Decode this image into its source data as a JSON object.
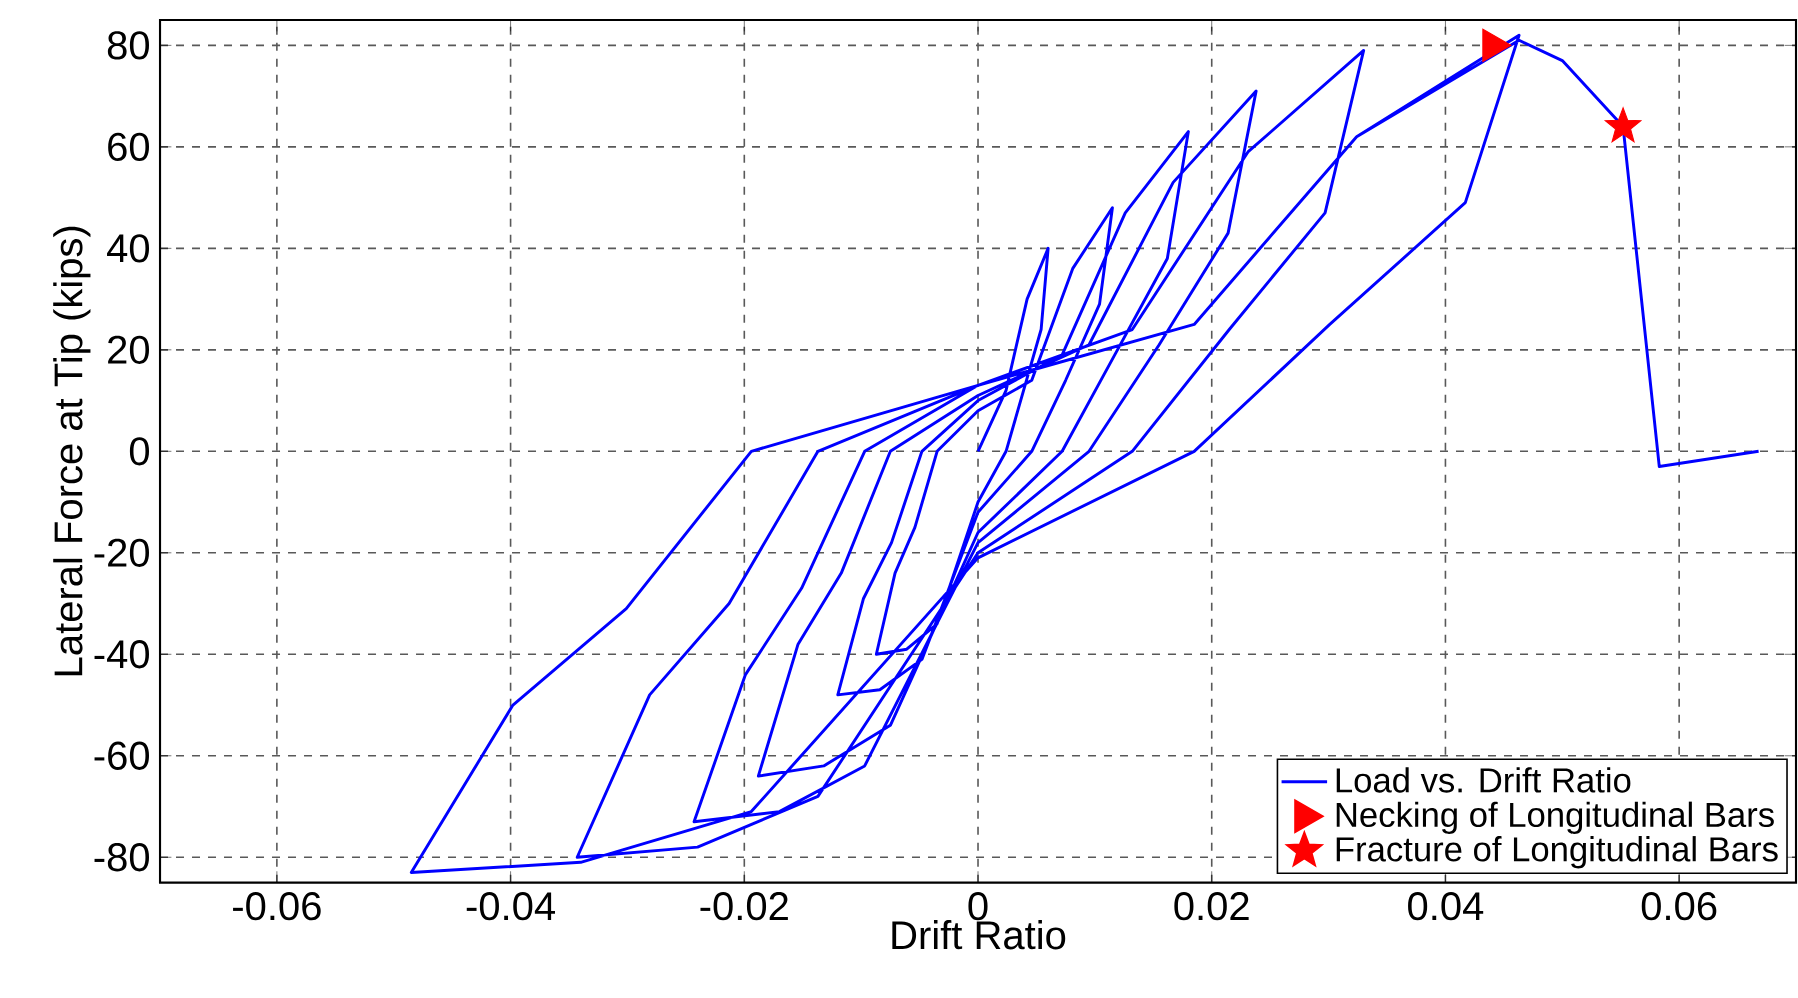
{
  "chart_data": {
    "type": "line",
    "xlabel": "Drift Ratio",
    "ylabel": "Lateral Force at Tip (kips)",
    "xlim": [
      -0.07,
      0.07
    ],
    "ylim": [
      -85,
      85
    ],
    "xticks": [
      -0.06,
      -0.04,
      -0.02,
      0,
      0.02,
      0.04,
      0.06
    ],
    "yticks": [
      -80,
      -60,
      -40,
      -20,
      0,
      20,
      40,
      60,
      80
    ],
    "grid": true,
    "legend": "bottom right",
    "series": [
      {
        "name": "Load vs. Drift Ratio",
        "color": "#0000ff",
        "marker": "none",
        "x": [
          0,
          0.0024,
          0.0042,
          0.006,
          0.0054,
          0.0039,
          0.0024,
          0,
          -0.0035,
          -0.0061,
          -0.0087,
          -0.0071,
          -0.0054,
          -0.0035,
          0,
          0.0046,
          0.0081,
          0.0115,
          0.0104,
          0.0075,
          0.0046,
          0,
          -0.0048,
          -0.0084,
          -0.012,
          -0.0098,
          -0.0074,
          -0.0048,
          0,
          0.0072,
          0.0126,
          0.018,
          0.0162,
          0.0117,
          0.0072,
          0,
          -0.0075,
          -0.0132,
          -0.0188,
          -0.0154,
          -0.0117,
          -0.0075,
          0,
          0.0095,
          0.0167,
          0.0238,
          0.0214,
          0.0155,
          0.0095,
          0,
          -0.0097,
          -0.017,
          -0.0243,
          -0.0199,
          -0.0151,
          -0.0097,
          0,
          0.0132,
          0.0231,
          0.033,
          0.0297,
          0.0215,
          0.0132,
          0,
          -0.0137,
          -0.024,
          -0.0343,
          -0.0281,
          -0.0213,
          -0.0137,
          0,
          0.0185,
          0.0324,
          0.0463,
          0.0417,
          0.0301,
          0.0185,
          0,
          -0.0194,
          -0.034,
          -0.0485,
          -0.0398,
          -0.0301,
          -0.0194,
          0,
          0.0185,
          0.0324,
          0.0463,
          0.05,
          0.0552,
          0.0583,
          0.0668
        ],
        "values": [
          0,
          12,
          30,
          40,
          24,
          12,
          0,
          -10,
          -34,
          -39,
          -40,
          -24,
          -15,
          0,
          8,
          14,
          36,
          48,
          29,
          14,
          0,
          -12,
          -41,
          -47,
          -48,
          -29,
          -18,
          0,
          10,
          19,
          47,
          63,
          38,
          19,
          0,
          -16,
          -54,
          -62,
          -64,
          -38,
          -24,
          0,
          11,
          21,
          53,
          71,
          43,
          21,
          0,
          -18,
          -62,
          -71,
          -73,
          -44,
          -27,
          0,
          13,
          24,
          59,
          79,
          47,
          24,
          0,
          -20,
          -68,
          -78,
          -80,
          -48,
          -30,
          0,
          13,
          25,
          62,
          82,
          49,
          25,
          0,
          -21,
          -71,
          -81,
          -83,
          -50,
          -31,
          0,
          13,
          25,
          62,
          81,
          77,
          64,
          -3,
          0
        ]
      },
      {
        "name": "Necking of Longitudinal Bars",
        "type": "scatter",
        "color": "#ff0000",
        "marker": "triangle",
        "x": [
          0.044
        ],
        "values": [
          80
        ]
      },
      {
        "name": "Fracture of Longitudinal Bars",
        "type": "scatter",
        "color": "#ff0000",
        "marker": "star",
        "x": [
          0.0552
        ],
        "values": [
          64
        ]
      }
    ]
  }
}
